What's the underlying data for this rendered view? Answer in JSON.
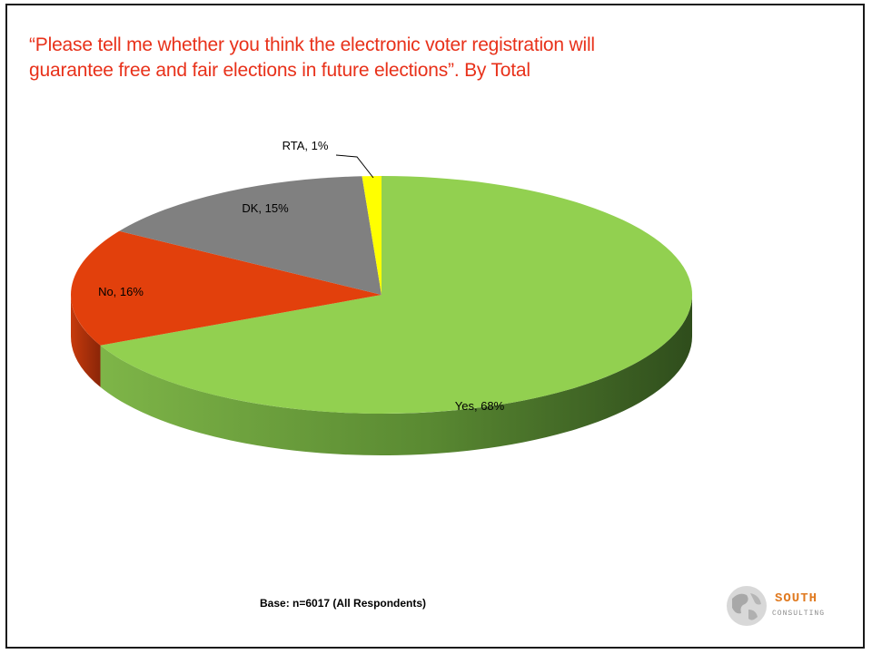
{
  "title": "“Please tell me whether you think the electronic voter registration will guarantee free and fair elections in future elections”. By Total",
  "base_note": "Base: n=6017 (All Respondents)",
  "logo": {
    "word": "SOUTH",
    "sub": "CONSULTING",
    "icon": "globe-icon"
  },
  "chart_data": {
    "type": "pie",
    "title": "",
    "slices": [
      {
        "label": "Yes, 68%",
        "name": "Yes",
        "value": 68,
        "color": "#92d050"
      },
      {
        "label": "No, 16%",
        "name": "No",
        "value": 16,
        "color": "#e2400c"
      },
      {
        "label": "DK, 15%",
        "name": "DK",
        "value": 15,
        "color": "#808080"
      },
      {
        "label": "RTA, 1%",
        "name": "RTA",
        "value": 1,
        "color": "#ffff00"
      }
    ],
    "start": "12 o'clock, clockwise",
    "style": "3d-tilted"
  }
}
